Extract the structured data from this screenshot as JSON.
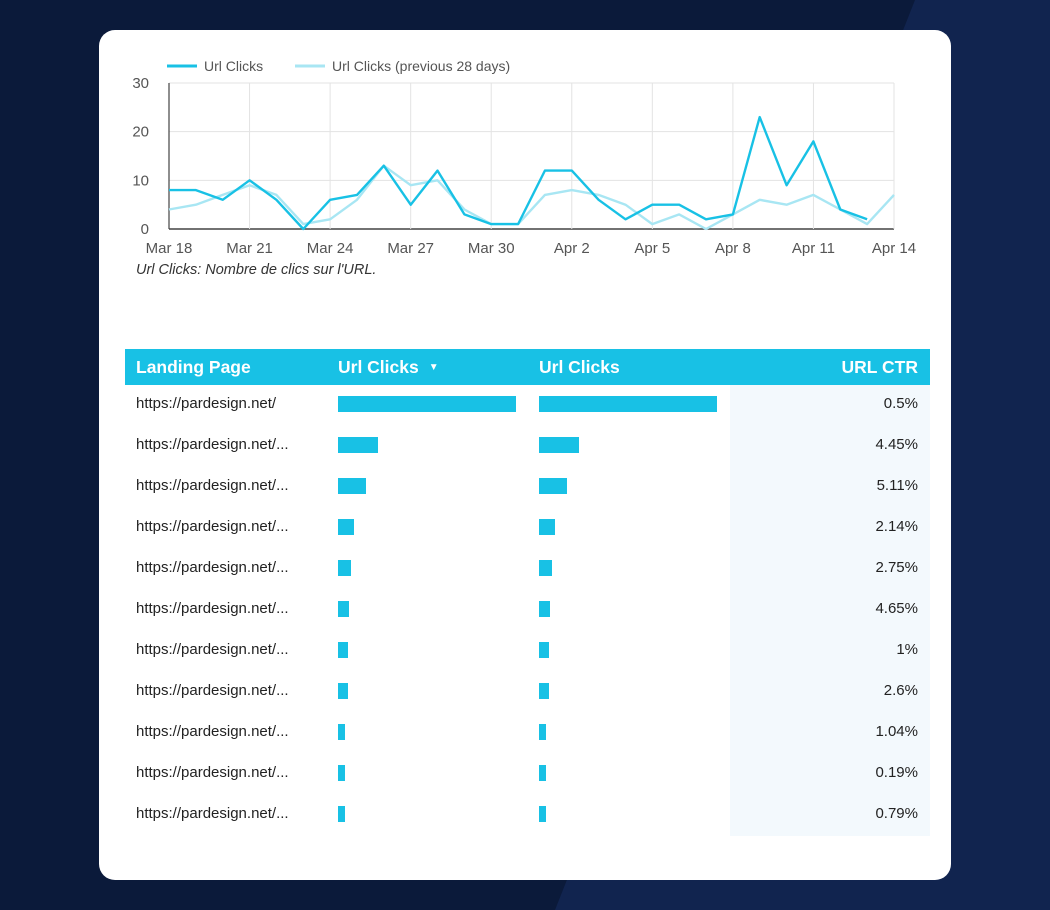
{
  "colors": {
    "current_line": "#18c1e5",
    "previous_line": "#a8e6f3",
    "header_bg": "#18c1e5",
    "bar": "#18c1e5",
    "ctr_bg": "#f3f9fd",
    "page_bg": "#0b1a3a"
  },
  "chart_data": {
    "type": "line",
    "title": "",
    "xlabel": "",
    "ylabel": "",
    "ylim": [
      0,
      30
    ],
    "yticks": [
      "0",
      "10",
      "20",
      "30"
    ],
    "x_tick_labels": [
      "Mar 18",
      "Mar 21",
      "Mar 24",
      "Mar 27",
      "Mar 30",
      "Apr 2",
      "Apr 5",
      "Apr 8",
      "Apr 11",
      "Apr 14"
    ],
    "x": [
      "Mar 18",
      "Mar 19",
      "Mar 20",
      "Mar 21",
      "Mar 22",
      "Mar 23",
      "Mar 24",
      "Mar 25",
      "Mar 26",
      "Mar 27",
      "Mar 28",
      "Mar 29",
      "Mar 30",
      "Mar 31",
      "Apr 1",
      "Apr 2",
      "Apr 3",
      "Apr 4",
      "Apr 5",
      "Apr 6",
      "Apr 7",
      "Apr 8",
      "Apr 9",
      "Apr 10",
      "Apr 11",
      "Apr 12",
      "Apr 13",
      "Apr 14"
    ],
    "series": [
      {
        "name": "Url Clicks",
        "values": [
          8,
          8,
          6,
          10,
          6,
          0,
          6,
          7,
          13,
          5,
          12,
          3,
          1,
          1,
          12,
          12,
          6,
          2,
          5,
          5,
          2,
          3,
          23,
          9,
          18,
          4,
          2,
          null
        ]
      },
      {
        "name": "Url Clicks (previous 28 days)",
        "values": [
          4,
          5,
          7,
          9,
          7,
          1,
          2,
          6,
          13,
          9,
          10,
          4,
          1,
          1,
          7,
          8,
          7,
          5,
          1,
          3,
          0,
          3,
          6,
          5,
          7,
          4,
          1,
          7
        ]
      }
    ],
    "grid": true,
    "legend": "top-left",
    "footnote": "Url Clicks: Nombre de clics sur l'URL."
  },
  "table": {
    "headers": {
      "landing_page": "Landing Page",
      "url_clicks_sorted": "Url Clicks",
      "url_clicks": "Url Clicks",
      "url_ctr": "URL CTR"
    },
    "sort_icon": "▼",
    "max_clicks": 160,
    "rows": [
      {
        "page": "https://pardesign.net/",
        "clicks": 160,
        "ctr": "0.5%"
      },
      {
        "page": "https://pardesign.net/...",
        "clicks": 36,
        "ctr": "4.45%"
      },
      {
        "page": "https://pardesign.net/...",
        "clicks": 25,
        "ctr": "5.11%"
      },
      {
        "page": "https://pardesign.net/...",
        "clicks": 14,
        "ctr": "2.14%"
      },
      {
        "page": "https://pardesign.net/...",
        "clicks": 12,
        "ctr": "2.75%"
      },
      {
        "page": "https://pardesign.net/...",
        "clicks": 10,
        "ctr": "4.65%"
      },
      {
        "page": "https://pardesign.net/...",
        "clicks": 9,
        "ctr": "1%"
      },
      {
        "page": "https://pardesign.net/...",
        "clicks": 9,
        "ctr": "2.6%"
      },
      {
        "page": "https://pardesign.net/...",
        "clicks": 6,
        "ctr": "1.04%"
      },
      {
        "page": "https://pardesign.net/...",
        "clicks": 6,
        "ctr": "0.19%"
      },
      {
        "page": "https://pardesign.net/...",
        "clicks": 6,
        "ctr": "0.79%"
      }
    ]
  }
}
